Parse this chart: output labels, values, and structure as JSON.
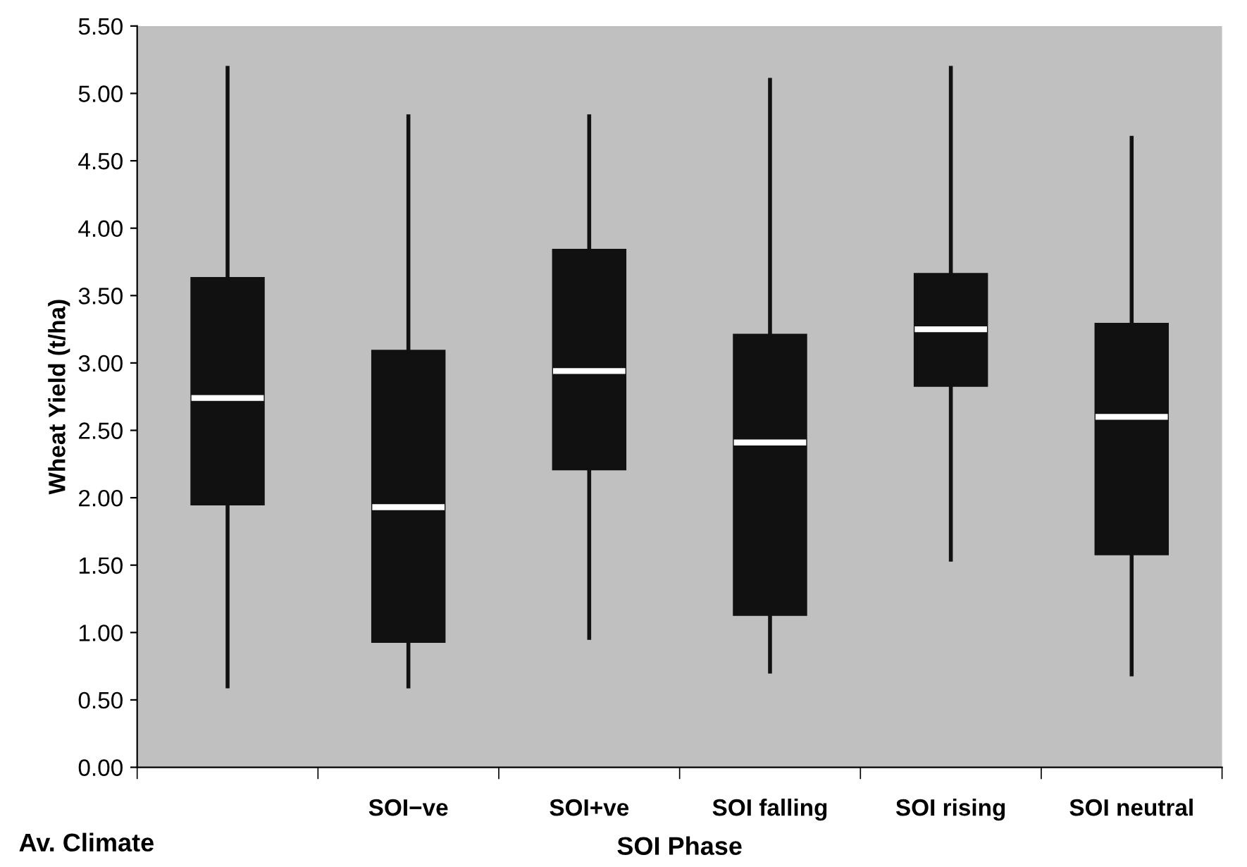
{
  "chart_data": {
    "type": "box",
    "ylabel": "Wheat Yield (t/ha)",
    "xlabel": "SOI Phase",
    "categories": [
      null,
      "SOI−ve",
      "SOI+ve",
      "SOI falling",
      "SOI rising",
      "SOI neutral"
    ],
    "boxes": [
      {
        "low": 0.6,
        "q1": 1.95,
        "median": 2.74,
        "q3": 3.63,
        "high": 5.19
      },
      {
        "low": 0.6,
        "q1": 0.93,
        "median": 1.93,
        "q3": 3.09,
        "high": 4.83
      },
      {
        "low": 0.96,
        "q1": 2.21,
        "median": 2.94,
        "q3": 3.84,
        "high": 4.83
      },
      {
        "low": 0.71,
        "q1": 1.13,
        "median": 2.41,
        "q3": 3.21,
        "high": 5.1
      },
      {
        "low": 1.54,
        "q1": 2.83,
        "median": 3.25,
        "q3": 3.66,
        "high": 5.19
      },
      {
        "low": 0.69,
        "q1": 1.58,
        "median": 2.6,
        "q3": 3.29,
        "high": 4.67
      }
    ],
    "color": "#111111",
    "ylim": [
      0,
      5.5
    ],
    "yticks": [
      {
        "value": 0,
        "label": "0.00"
      },
      {
        "value": 0.5,
        "label": "0.50"
      },
      {
        "value": 1,
        "label": "1.00"
      },
      {
        "value": 1.5,
        "label": "1.50"
      },
      {
        "value": 2,
        "label": "2.00"
      },
      {
        "value": 2.5,
        "label": "2.50"
      },
      {
        "value": 3,
        "label": "3.00"
      },
      {
        "value": 3.5,
        "label": "3.50"
      },
      {
        "value": 4,
        "label": "4.00"
      },
      {
        "value": 4.5,
        "label": "4.50"
      },
      {
        "value": 5,
        "label": "5.00"
      },
      {
        "value": 5.5,
        "label": "5.50"
      }
    ],
    "grid": false,
    "annotations": [
      "Av. Climate"
    ]
  }
}
